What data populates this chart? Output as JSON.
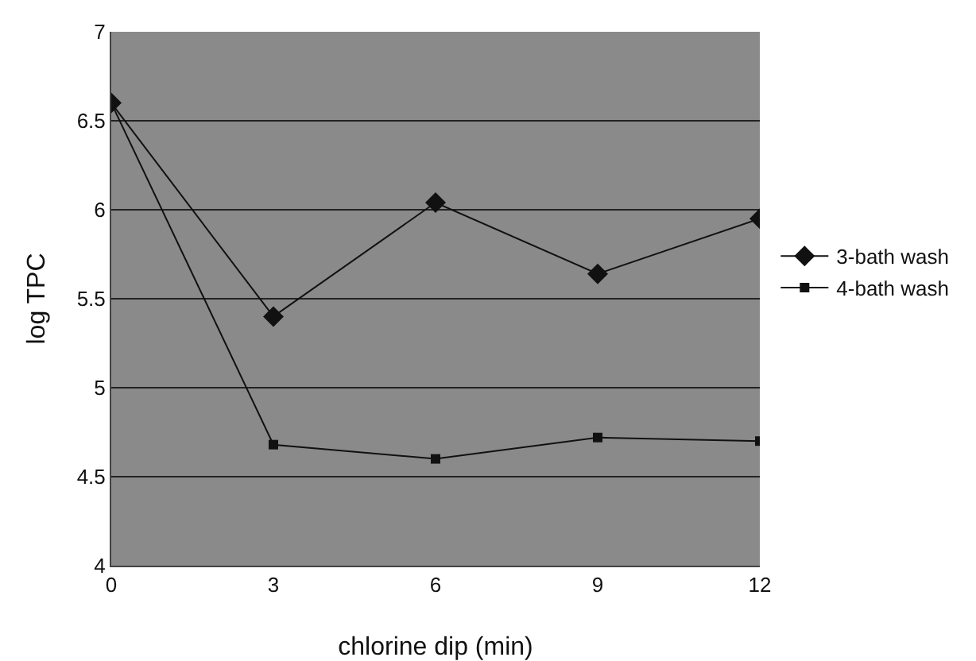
{
  "chart_data": {
    "type": "line",
    "xlabel": "chlorine dip (min)",
    "ylabel": "log TPC",
    "x": [
      0,
      3,
      6,
      9,
      12
    ],
    "series": [
      {
        "name": "3-bath wash",
        "color": "#111111",
        "marker": "diamond",
        "values": [
          6.6,
          5.4,
          6.04,
          5.64,
          5.95
        ]
      },
      {
        "name": "4-bath wash",
        "color": "#111111",
        "marker": "square",
        "values": [
          6.6,
          4.68,
          4.6,
          4.72,
          4.7
        ]
      }
    ],
    "xlim": [
      0,
      12
    ],
    "xticks": [
      0,
      3,
      6,
      9,
      12
    ],
    "ylim": [
      4,
      7
    ],
    "yticks": [
      4,
      4.5,
      5,
      5.5,
      6,
      6.5,
      7
    ],
    "grid": "y",
    "legend": "right",
    "line_style": "solid"
  }
}
